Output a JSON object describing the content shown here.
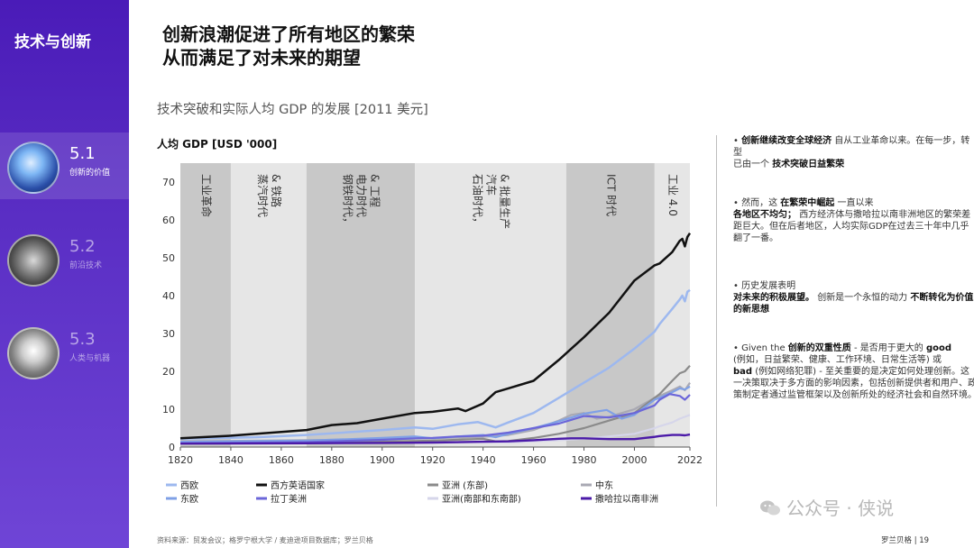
{
  "sidebar": {
    "title": "技术与创新",
    "items": [
      {
        "num": "5.1",
        "label": "创新的价值",
        "active": true
      },
      {
        "num": "5.2",
        "label": "前沿技术",
        "active": false
      },
      {
        "num": "5.3",
        "label": "人类与机器",
        "active": false
      }
    ]
  },
  "headline": {
    "line1": "创新浪潮促进了所有地区的繁荣",
    "line2": "从而满足了对未来的期望"
  },
  "subtitle": "技术突破和实际人均 GDP 的发展 [2011 美元]",
  "right": {
    "b1": {
      "bold1": "创新继续改变全球经济",
      "t1": "自从工业革命以来。在每一步，转型",
      "t2": "已由一个",
      "bold2": "技术突破日益繁荣"
    },
    "b2": {
      "t1": "然而，这",
      "bold1": "在繁荣中崛起",
      "t2": "一直以来",
      "bold2": "各地区不均匀；",
      "t3": "西方经济体与撒哈拉以南非洲地区的繁荣差距巨大。但在后者地区，人均实际GDP在过去三十年中几乎翻了一番。"
    },
    "b3": {
      "t1": "历史发展表明",
      "bold1": "对未来的积极展望。",
      "t2": "创新是一个永恒的动力",
      "bold2": "不断转化为价值的新思想"
    },
    "b4": {
      "t1": "Given the",
      "bold1": "创新的双重性质",
      "t2": "- 是否用于更大的",
      "bold2": "good",
      "t3": "(例如，日益繁荣、健康、工作环境、日常生活等) 或",
      "bold3": "bad",
      "t4": "(例如网络犯罪) - 至关重要的是决定如何处理创新。这一决策取决于多方面的影响因素，包括创新提供者和用户、政策制定者通过监管框架以及创新所处的经济社会和自然环境。"
    }
  },
  "source": "资料来源：贸发会议；格罗宁根大学 / 麦迪逊项目数据库；罗兰贝格",
  "page_number": "罗兰贝格 | 19",
  "watermark": "公众号 · 侠说",
  "chart_data": {
    "type": "line",
    "ylabel": "人均 GDP [USD '000]",
    "xlim": [
      1820,
      2022
    ],
    "ylim": [
      0,
      75
    ],
    "x_ticks": [
      1820,
      1840,
      1860,
      1880,
      1900,
      1920,
      1940,
      1960,
      1980,
      2000,
      2022
    ],
    "y_ticks": [
      0,
      10,
      20,
      30,
      40,
      50,
      60,
      70
    ],
    "eras": [
      {
        "label": "工业革命",
        "start": 1820,
        "end": 1840,
        "shade": "#c8c8c8"
      },
      {
        "label": "蒸汽时代 & 铁路",
        "start": 1840,
        "end": 1870,
        "shade": "#e6e6e6"
      },
      {
        "label": "钢铁时代，电力时代 & 工程",
        "start": 1870,
        "end": 1913,
        "shade": "#c8c8c8"
      },
      {
        "label": "石油时代，汽车 & 批量生产",
        "start": 1913,
        "end": 1973,
        "shade": "#e6e6e6"
      },
      {
        "label": "ICT 时代",
        "start": 1973,
        "end": 2008,
        "shade": "#c8c8c8"
      },
      {
        "label": "工业 4.0",
        "start": 2008,
        "end": 2022,
        "shade": "#e6e6e6"
      }
    ],
    "series": [
      {
        "name": "西欧",
        "color": "#9db8ef",
        "width": 2.5,
        "points": [
          [
            1820,
            2.2
          ],
          [
            1850,
            2.6
          ],
          [
            1870,
            3.2
          ],
          [
            1900,
            4.5
          ],
          [
            1913,
            5.2
          ],
          [
            1920,
            4.8
          ],
          [
            1930,
            6.0
          ],
          [
            1938,
            6.6
          ],
          [
            1945,
            5.2
          ],
          [
            1950,
            6.5
          ],
          [
            1960,
            9.0
          ],
          [
            1970,
            13.0
          ],
          [
            1980,
            17.0
          ],
          [
            1990,
            21.0
          ],
          [
            2000,
            26.0
          ],
          [
            2008,
            30.5
          ],
          [
            2010,
            32.5
          ],
          [
            2015,
            36.5
          ],
          [
            2018,
            39.0
          ],
          [
            2019,
            40.0
          ],
          [
            2020,
            38.5
          ],
          [
            2021,
            41.0
          ],
          [
            2022,
            41.5
          ]
        ]
      },
      {
        "name": "西方英语国家",
        "color": "#111111",
        "width": 2.5,
        "points": [
          [
            1820,
            2.3
          ],
          [
            1840,
            3.0
          ],
          [
            1860,
            4.0
          ],
          [
            1870,
            4.5
          ],
          [
            1880,
            5.8
          ],
          [
            1890,
            6.3
          ],
          [
            1900,
            7.5
          ],
          [
            1913,
            9.0
          ],
          [
            1920,
            9.3
          ],
          [
            1930,
            10.2
          ],
          [
            1933,
            9.5
          ],
          [
            1940,
            11.5
          ],
          [
            1945,
            14.5
          ],
          [
            1950,
            15.5
          ],
          [
            1960,
            17.5
          ],
          [
            1970,
            23.0
          ],
          [
            1980,
            29.0
          ],
          [
            1990,
            35.5
          ],
          [
            2000,
            44.0
          ],
          [
            2008,
            48.0
          ],
          [
            2010,
            48.5
          ],
          [
            2015,
            51.5
          ],
          [
            2018,
            54.5
          ],
          [
            2019,
            55.0
          ],
          [
            2020,
            53.0
          ],
          [
            2021,
            55.5
          ],
          [
            2022,
            56.5
          ]
        ]
      },
      {
        "name": "亚洲 (东部)",
        "color": "#8a8a8a",
        "width": 2.2,
        "points": [
          [
            1820,
            1.2
          ],
          [
            1870,
            1.2
          ],
          [
            1900,
            1.4
          ],
          [
            1920,
            1.7
          ],
          [
            1940,
            2.2
          ],
          [
            1945,
            1.5
          ],
          [
            1950,
            1.6
          ],
          [
            1960,
            2.4
          ],
          [
            1970,
            3.5
          ],
          [
            1980,
            5.0
          ],
          [
            1990,
            7.0
          ],
          [
            2000,
            9.0
          ],
          [
            2008,
            13.0
          ],
          [
            2010,
            14.0
          ],
          [
            2015,
            17.5
          ],
          [
            2018,
            19.5
          ],
          [
            2020,
            20.0
          ],
          [
            2022,
            21.5
          ]
        ]
      },
      {
        "name": "中东",
        "color": "#a9a9b3",
        "width": 2.2,
        "points": [
          [
            1820,
            1.5
          ],
          [
            1870,
            1.8
          ],
          [
            1900,
            2.1
          ],
          [
            1920,
            2.3
          ],
          [
            1940,
            2.7
          ],
          [
            1950,
            3.2
          ],
          [
            1960,
            4.5
          ],
          [
            1970,
            7.0
          ],
          [
            1975,
            8.5
          ],
          [
            1980,
            9.0
          ],
          [
            1985,
            7.5
          ],
          [
            1990,
            8.0
          ],
          [
            2000,
            10.0
          ],
          [
            2008,
            13.0
          ],
          [
            2010,
            13.5
          ],
          [
            2015,
            15.0
          ],
          [
            2018,
            16.0
          ],
          [
            2020,
            15.0
          ],
          [
            2022,
            17.0
          ]
        ]
      },
      {
        "name": "东欧",
        "color": "#7fa0e6",
        "width": 2.2,
        "points": [
          [
            1820,
            1.4
          ],
          [
            1870,
            1.7
          ],
          [
            1900,
            2.4
          ],
          [
            1913,
            2.8
          ],
          [
            1920,
            2.3
          ],
          [
            1930,
            2.8
          ],
          [
            1940,
            3.2
          ],
          [
            1945,
            2.6
          ],
          [
            1950,
            3.5
          ],
          [
            1960,
            5.0
          ],
          [
            1970,
            6.8
          ],
          [
            1980,
            8.8
          ],
          [
            1989,
            9.8
          ],
          [
            1995,
            7.5
          ],
          [
            2000,
            8.5
          ],
          [
            2008,
            12.5
          ],
          [
            2010,
            13.0
          ],
          [
            2015,
            14.5
          ],
          [
            2018,
            15.5
          ],
          [
            2020,
            15.2
          ],
          [
            2022,
            16.0
          ]
        ]
      },
      {
        "name": "拉丁美洲",
        "color": "#6b66d9",
        "width": 2.2,
        "points": [
          [
            1820,
            1.0
          ],
          [
            1870,
            1.3
          ],
          [
            1900,
            1.9
          ],
          [
            1913,
            2.3
          ],
          [
            1920,
            2.4
          ],
          [
            1930,
            2.8
          ],
          [
            1940,
            3.0
          ],
          [
            1950,
            3.8
          ],
          [
            1960,
            5.0
          ],
          [
            1970,
            6.2
          ],
          [
            1980,
            8.2
          ],
          [
            1990,
            7.8
          ],
          [
            2000,
            9.0
          ],
          [
            2008,
            11.0
          ],
          [
            2010,
            12.5
          ],
          [
            2014,
            14.0
          ],
          [
            2018,
            13.5
          ],
          [
            2020,
            12.5
          ],
          [
            2022,
            13.8
          ]
        ]
      },
      {
        "name": "亚洲(南部和东南部)",
        "color": "#d6d6ea",
        "width": 2.2,
        "points": [
          [
            1820,
            1.0
          ],
          [
            1870,
            1.0
          ],
          [
            1900,
            1.1
          ],
          [
            1920,
            1.2
          ],
          [
            1940,
            1.3
          ],
          [
            1950,
            1.2
          ],
          [
            1960,
            1.5
          ],
          [
            1970,
            1.8
          ],
          [
            1980,
            2.2
          ],
          [
            1990,
            2.8
          ],
          [
            2000,
            3.5
          ],
          [
            2008,
            5.0
          ],
          [
            2010,
            5.5
          ],
          [
            2015,
            6.5
          ],
          [
            2018,
            7.5
          ],
          [
            2022,
            8.5
          ]
        ]
      },
      {
        "name": "撒哈拉以南非洲",
        "color": "#4b1aa8",
        "width": 2.4,
        "points": [
          [
            1820,
            0.9
          ],
          [
            1870,
            1.0
          ],
          [
            1900,
            1.1
          ],
          [
            1920,
            1.2
          ],
          [
            1940,
            1.4
          ],
          [
            1950,
            1.5
          ],
          [
            1960,
            1.8
          ],
          [
            1970,
            2.2
          ],
          [
            1975,
            2.3
          ],
          [
            1980,
            2.3
          ],
          [
            1990,
            2.1
          ],
          [
            2000,
            2.1
          ],
          [
            2008,
            2.7
          ],
          [
            2010,
            2.9
          ],
          [
            2015,
            3.2
          ],
          [
            2018,
            3.2
          ],
          [
            2020,
            3.1
          ],
          [
            2022,
            3.3
          ]
        ]
      }
    ],
    "legend_rows": [
      [
        "西欧",
        "西方英语国家",
        "亚洲 (东部)",
        "中东"
      ],
      [
        "东欧",
        "拉丁美洲",
        "亚洲(南部和东南部)",
        "撒哈拉以南非洲"
      ]
    ]
  }
}
